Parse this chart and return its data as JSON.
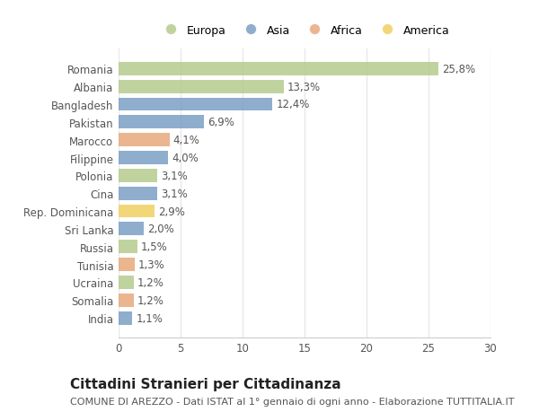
{
  "categories": [
    "Romania",
    "Albania",
    "Bangladesh",
    "Pakistan",
    "Marocco",
    "Filippine",
    "Polonia",
    "Cina",
    "Rep. Dominicana",
    "Sri Lanka",
    "Russia",
    "Tunisia",
    "Ucraina",
    "Somalia",
    "India"
  ],
  "values": [
    25.8,
    13.3,
    12.4,
    6.9,
    4.1,
    4.0,
    3.1,
    3.1,
    2.9,
    2.0,
    1.5,
    1.3,
    1.2,
    1.2,
    1.1
  ],
  "labels": [
    "25,8%",
    "13,3%",
    "12,4%",
    "6,9%",
    "4,1%",
    "4,0%",
    "3,1%",
    "3,1%",
    "2,9%",
    "2,0%",
    "1,5%",
    "1,3%",
    "1,2%",
    "1,2%",
    "1,1%"
  ],
  "continent": [
    "Europa",
    "Europa",
    "Asia",
    "Asia",
    "Africa",
    "Asia",
    "Europa",
    "Asia",
    "America",
    "Asia",
    "Europa",
    "Africa",
    "Europa",
    "Africa",
    "Asia"
  ],
  "colors": {
    "Europa": "#b5cc8e",
    "Asia": "#7b9fc5",
    "Africa": "#e8a87c",
    "America": "#f0d060"
  },
  "legend_order": [
    "Europa",
    "Asia",
    "Africa",
    "America"
  ],
  "title": "Cittadini Stranieri per Cittadinanza",
  "subtitle": "COMUNE DI AREZZO - Dati ISTAT al 1° gennaio di ogni anno - Elaborazione TUTTITALIA.IT",
  "xlim": [
    0,
    30
  ],
  "xticks": [
    0,
    5,
    10,
    15,
    20,
    25,
    30
  ],
  "background_color": "#ffffff",
  "grid_color": "#e8e8e8",
  "bar_height": 0.75,
  "title_fontsize": 11,
  "subtitle_fontsize": 8,
  "tick_fontsize": 8.5,
  "label_fontsize": 8.5
}
